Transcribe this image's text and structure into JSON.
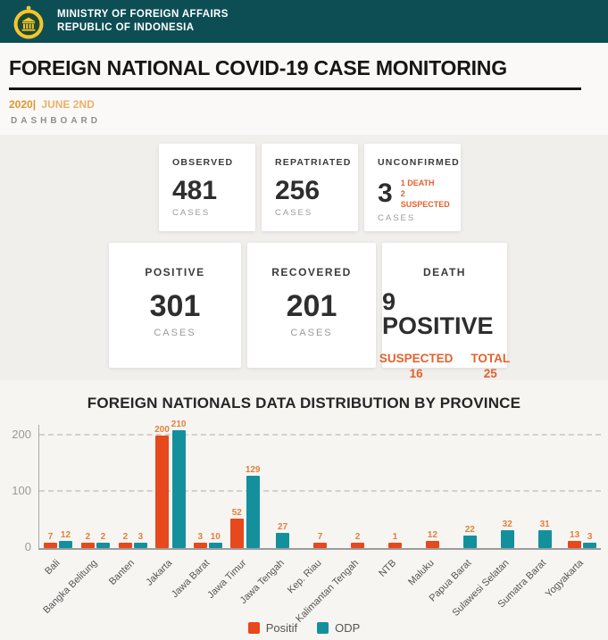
{
  "header": {
    "ministry_line1": "MINISTRY OF FOREIGN AFFAIRS",
    "ministry_line2": "REPUBLIC OF INDONESIA"
  },
  "page": {
    "title": "FOREIGN NATIONAL COVID-19 CASE MONITORING",
    "date_year": "2020|",
    "date_label": "JUNE 2ND",
    "breadcrumb": "DASHBOARD"
  },
  "summary_cards": {
    "observed": {
      "label": "OBSERVED",
      "value": "481",
      "unit": "CASES"
    },
    "repatriated": {
      "label": "REPATRIATED",
      "value": "256",
      "unit": "CASES"
    },
    "unconfirmed": {
      "label": "UNCONFIRMED",
      "value": "3",
      "unit": "CASES",
      "note_line1": "1 DEATH",
      "note_line2": "2 SUSPECTED"
    },
    "positive": {
      "label": "POSITIVE",
      "value": "301",
      "unit": "CASES"
    },
    "recovered": {
      "label": "RECOVERED",
      "value": "201",
      "unit": "CASES"
    },
    "death": {
      "label": "DEATH",
      "value": "9 POSITIVE",
      "suspected_label": "SUSPECTED",
      "suspected_value": "16",
      "total_label": "TOTAL",
      "total_value": "25"
    }
  },
  "chart_data": {
    "type": "bar",
    "title": "FOREIGN NATIONALS DATA DISTRIBUTION BY PROVINCE",
    "categories": [
      "Bali",
      "Bangka Belitung",
      "Banten",
      "Jakarta",
      "Jawa Barat",
      "Jawa Timur",
      "Jawa Tengah",
      "Kep. Riau",
      "Kalimantan Tengah",
      "NTB",
      "Maluku",
      "Papua Barat",
      "Sulawesi Selatan",
      "Sumatra Barat",
      "Yogyakarta"
    ],
    "series": [
      {
        "name": "Positif",
        "color": "#e7481c",
        "values": [
          7,
          2,
          2,
          200,
          3,
          52,
          0,
          7,
          2,
          1,
          12,
          0,
          0,
          0,
          13
        ]
      },
      {
        "name": "ODP",
        "color": "#14909d",
        "values": [
          12,
          2,
          3,
          210,
          10,
          129,
          27,
          0,
          0,
          0,
          0,
          22,
          32,
          31,
          3
        ]
      }
    ],
    "yticks": [
      0,
      100,
      200
    ],
    "ylim": [
      0,
      210
    ],
    "grid": "horizontal dashed",
    "legend_position": "bottom",
    "value_label_color": "#e2813c",
    "value_labels": "shown above each bar"
  },
  "colors": {
    "header_bg": "#0d4e55",
    "accent_orange": "#e7481c",
    "accent_teal": "#14909d",
    "note_orange": "#e2622d",
    "logo_gold": "#f5c431",
    "logo_green": "#1b4a2e"
  }
}
